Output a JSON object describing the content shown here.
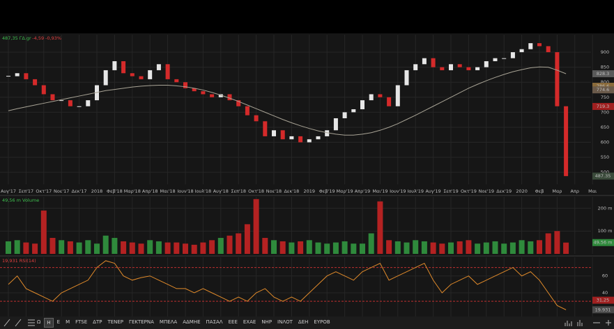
{
  "chart_data": [
    {
      "type": "candlestick",
      "header": [
        "487,35",
        "ΓΔ.gr",
        "-4,59",
        "-0,93%"
      ],
      "categories": [
        "Αυγ'17",
        null,
        "Σεπ'17",
        null,
        "Οκτ'17",
        null,
        "Νοε'17",
        null,
        "Δεκ'17",
        null,
        "2018",
        null,
        "Φεβ'18",
        null,
        "Μαρ'18",
        null,
        "Απρ'18",
        null,
        "Μαι'18",
        null,
        "Ιουν'18",
        null,
        "Ιουλ'18",
        null,
        "Αυγ'18",
        null,
        "Σεπ'18",
        null,
        "Οκτ'18",
        null,
        "Νοε'18",
        null,
        "Δεκ'18",
        null,
        "2019",
        null,
        "Φεβ'19",
        null,
        "Μαρ'19",
        null,
        "Απρ'19",
        null,
        "Μαι'19",
        null,
        "Ιουν'19",
        null,
        "Ιουλ'19",
        null,
        "Αυγ'19",
        null,
        "Σεπ'19",
        null,
        "Οκτ'19",
        null,
        "Νοε'19",
        null,
        "Δεκ'19",
        null,
        "2020",
        null,
        "Φεβ",
        null,
        "Μαρ",
        null,
        "Απρ",
        null,
        "Μαι",
        null
      ],
      "series": [
        {
          "color": "#e6e6e6",
          "down_color": "#d42a2a",
          "values": [
            820,
            830,
            810,
            790,
            760,
            740,
            740,
            720,
            720,
            740,
            790,
            840,
            870,
            830,
            820,
            810,
            840,
            860,
            810,
            800,
            780,
            770,
            760,
            750,
            760,
            740,
            720,
            690,
            670,
            620,
            640,
            610,
            620,
            600,
            610,
            620,
            640,
            680,
            700,
            710,
            740,
            760,
            750,
            720,
            790,
            840,
            860,
            880,
            850,
            840,
            860,
            850,
            840,
            850,
            870,
            880,
            880,
            900,
            910,
            930,
            920,
            900,
            720,
            487.35,
            null,
            null,
            null,
            null
          ]
        },
        {
          "color": "#a9a496",
          "values": [
            705,
            712,
            718,
            724,
            730,
            736,
            742,
            748,
            754,
            760,
            766,
            772,
            776,
            780,
            784,
            787,
            789,
            790,
            790,
            788,
            785,
            780,
            774,
            766,
            757,
            747,
            736,
            724,
            712,
            700,
            688,
            676,
            665,
            655,
            646,
            638,
            632,
            627,
            624,
            624,
            627,
            632,
            640,
            650,
            662,
            676,
            690,
            705,
            720,
            735,
            750,
            765,
            780,
            793,
            805,
            816,
            826,
            835,
            842,
            848,
            851,
            850,
            840,
            828.3,
            null,
            null,
            null,
            null
          ]
        }
      ],
      "ylim": [
        460,
        958
      ],
      "yticks": [
        500,
        550,
        600,
        650,
        700,
        750,
        800,
        850,
        900
      ],
      "grid": true,
      "markers": [
        {
          "value": 828.3,
          "label": "828.3",
          "color": "#5a5a5a"
        },
        {
          "value": 786.6,
          "label": "786.6",
          "color": "#8a6a3a"
        },
        {
          "value": 774.6,
          "label": "774.6",
          "color": "#6a5a4a"
        },
        {
          "value": 719.3,
          "label": "719.3",
          "color": "#a02020"
        },
        {
          "value": 487.35,
          "label": "487.35",
          "color": "#3a4a3a"
        }
      ]
    },
    {
      "type": "bar",
      "header": [
        "49,56 m",
        "Volume"
      ],
      "values": [
        55,
        60,
        50,
        45,
        190,
        70,
        60,
        55,
        50,
        60,
        45,
        80,
        70,
        55,
        50,
        45,
        60,
        55,
        50,
        50,
        45,
        40,
        50,
        60,
        70,
        80,
        90,
        130,
        240,
        70,
        60,
        55,
        50,
        55,
        60,
        50,
        45,
        50,
        55,
        45,
        45,
        90,
        230,
        60,
        55,
        50,
        60,
        55,
        50,
        45,
        50,
        55,
        60,
        45,
        50,
        55,
        45,
        50,
        60,
        55,
        60,
        90,
        100,
        49.56,
        null,
        null,
        null,
        null
      ],
      "up_color": "#2f8a3c",
      "down_color": "#b42222",
      "ylim": [
        0,
        250
      ],
      "yticks": [
        {
          "value": 100,
          "label": "100 m"
        },
        {
          "value": 200,
          "label": "200 m"
        }
      ],
      "grid": true,
      "markers": [
        {
          "value": 49.56,
          "label": "49,56 m",
          "color": "#2f8a3c"
        }
      ]
    },
    {
      "type": "line",
      "header": [
        "19,931",
        "RSI(14)"
      ],
      "values": [
        50,
        60,
        45,
        40,
        35,
        30,
        40,
        45,
        50,
        55,
        70,
        78,
        75,
        60,
        55,
        58,
        60,
        55,
        50,
        45,
        45,
        40,
        45,
        40,
        35,
        30,
        35,
        30,
        40,
        45,
        35,
        30,
        35,
        30,
        40,
        50,
        60,
        65,
        60,
        55,
        65,
        70,
        75,
        55,
        60,
        65,
        70,
        75,
        55,
        40,
        50,
        55,
        60,
        50,
        55,
        60,
        65,
        70,
        60,
        65,
        55,
        40,
        25,
        19.931,
        null,
        null,
        null,
        null
      ],
      "color": "#e08a2a",
      "ylim": [
        12,
        82
      ],
      "yticks": [
        40,
        60
      ],
      "levels": [
        70,
        30
      ],
      "level_color": "#c03030",
      "grid": true,
      "markers": [
        {
          "value": 31.25,
          "label": "31,25",
          "color": "#a02020"
        },
        {
          "value": 19.931,
          "label": "19,931",
          "color": "#4a4a4a"
        }
      ]
    }
  ],
  "toolbar": {
    "buttons": [
      "Ω",
      "H",
      "E",
      "M",
      "FTSE",
      "ΔΤΡ",
      "ΤΕΝΕΡ",
      "ΓΕΚΤΕΡΝΑ",
      "ΜΠΕΛΑ",
      "ΑΔΜΗΕ",
      "ΠΑΣΑΛ",
      "ΕΕΕ",
      "ΕΧΑΕ",
      "ΝΗΡ",
      "ΙΝΛΟΤ",
      "ΔΕΗ",
      "ΕΥΡΟΒ"
    ],
    "active": 1
  }
}
